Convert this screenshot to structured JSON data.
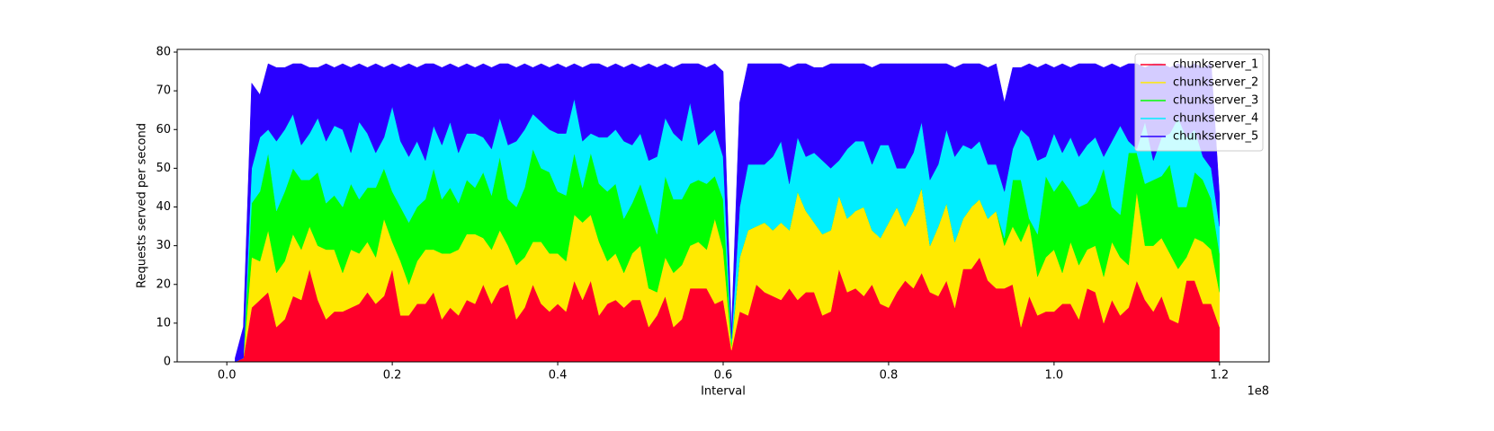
{
  "chart_data": {
    "type": "stacked_area",
    "xlabel": "Interval",
    "ylabel": "Requests served per second",
    "x_offset_label": "1e8",
    "x": [
      0.01,
      0.02,
      0.03,
      0.04,
      0.05,
      0.06,
      0.07,
      0.08,
      0.09,
      0.1,
      0.11,
      0.12,
      0.13,
      0.14,
      0.15,
      0.16,
      0.17,
      0.18,
      0.19,
      0.2,
      0.21,
      0.22,
      0.23,
      0.24,
      0.25,
      0.26,
      0.27,
      0.28,
      0.29,
      0.3,
      0.31,
      0.32,
      0.33,
      0.34,
      0.35,
      0.36,
      0.37,
      0.38,
      0.39,
      0.4,
      0.41,
      0.42,
      0.43,
      0.44,
      0.45,
      0.46,
      0.47,
      0.48,
      0.49,
      0.5,
      0.51,
      0.52,
      0.53,
      0.54,
      0.55,
      0.56,
      0.57,
      0.58,
      0.59,
      0.6,
      0.61,
      0.62,
      0.63,
      0.64,
      0.65,
      0.66,
      0.67,
      0.68,
      0.69,
      0.7,
      0.71,
      0.72,
      0.73,
      0.74,
      0.75,
      0.76,
      0.77,
      0.78,
      0.79,
      0.8,
      0.81,
      0.82,
      0.83,
      0.84,
      0.85,
      0.86,
      0.87,
      0.88,
      0.89,
      0.9,
      0.91,
      0.92,
      0.93,
      0.94,
      0.95,
      0.96,
      0.97,
      0.98,
      0.99,
      1.0,
      1.01,
      1.02,
      1.03,
      1.04,
      1.05,
      1.06,
      1.07,
      1.08,
      1.09,
      1.1,
      1.11,
      1.12,
      1.13,
      1.14,
      1.15,
      1.16,
      1.17,
      1.18,
      1.19,
      1.2
    ],
    "series": [
      {
        "name": "chunkserver_1",
        "color": "#ff0029",
        "values": [
          0,
          1,
          14,
          16,
          18,
          9,
          11,
          17,
          16,
          24,
          16,
          11,
          13,
          13,
          14,
          15,
          18,
          15,
          17,
          24,
          12,
          12,
          15,
          15,
          18,
          11,
          14,
          12,
          16,
          15,
          20,
          15,
          19,
          20,
          11,
          14,
          20,
          15,
          13,
          15,
          13,
          21,
          16,
          21,
          12,
          15,
          16,
          14,
          16,
          16,
          9,
          12,
          17,
          9,
          11,
          19,
          19,
          19,
          15,
          16,
          3,
          13,
          12,
          20,
          18,
          17,
          16,
          19,
          16,
          18,
          18,
          12,
          13,
          24,
          18,
          19,
          17,
          20,
          15,
          14,
          18,
          21,
          19,
          23,
          18,
          17,
          21,
          14,
          24,
          24,
          27,
          21,
          19,
          19,
          20,
          9,
          17,
          12,
          13,
          13,
          15,
          15,
          11,
          19,
          18,
          10,
          16,
          12,
          14,
          21,
          16,
          13,
          17,
          11,
          10,
          21,
          21,
          15,
          15,
          9
        ]
      },
      {
        "name": "chunkserver_2",
        "color": "#ffea00",
        "values": [
          0,
          0,
          13,
          10,
          16,
          14,
          15,
          16,
          13,
          11,
          14,
          18,
          16,
          10,
          15,
          13,
          13,
          12,
          20,
          7,
          14,
          8,
          11,
          14,
          11,
          17,
          14,
          17,
          17,
          18,
          12,
          14,
          15,
          10,
          14,
          13,
          11,
          16,
          15,
          13,
          13,
          17,
          20,
          17,
          19,
          11,
          12,
          9,
          12,
          14,
          10,
          6,
          10,
          14,
          14,
          11,
          12,
          10,
          22,
          13,
          1,
          14,
          22,
          15,
          18,
          17,
          20,
          15,
          28,
          21,
          18,
          21,
          21,
          19,
          19,
          20,
          23,
          14,
          17,
          22,
          22,
          14,
          20,
          22,
          12,
          18,
          20,
          17,
          13,
          16,
          15,
          16,
          20,
          11,
          15,
          22,
          19,
          10,
          14,
          16,
          8,
          16,
          14,
          10,
          12,
          12,
          15,
          15,
          11,
          23,
          14,
          17,
          15,
          17,
          14,
          6,
          11,
          16,
          14,
          9
        ]
      },
      {
        "name": "chunkserver_3",
        "color": "#00ff00",
        "values": [
          0,
          0,
          14,
          18,
          20,
          16,
          18,
          17,
          18,
          12,
          19,
          12,
          14,
          17,
          17,
          14,
          14,
          18,
          13,
          13,
          14,
          16,
          14,
          13,
          21,
          14,
          17,
          12,
          14,
          12,
          17,
          14,
          19,
          12,
          15,
          18,
          24,
          19,
          21,
          16,
          17,
          16,
          9,
          16,
          15,
          18,
          18,
          14,
          13,
          16,
          20,
          15,
          21,
          19,
          17,
          16,
          16,
          17,
          11,
          13,
          1,
          0,
          0,
          0,
          0,
          0,
          0,
          0,
          0,
          0,
          0,
          0,
          0,
          0,
          0,
          0,
          0,
          0,
          0,
          0,
          0,
          0,
          0,
          0,
          0,
          0,
          0,
          0,
          0,
          0,
          0,
          0,
          0,
          2,
          12,
          16,
          1,
          11,
          21,
          15,
          24,
          13,
          15,
          12,
          14,
          28,
          9,
          11,
          29,
          10,
          16,
          17,
          16,
          23,
          16,
          13,
          17,
          16,
          13,
          10
        ]
      },
      {
        "name": "chunkserver_4",
        "color": "#00eeff",
        "values": [
          0,
          0,
          9,
          14,
          6,
          18,
          16,
          14,
          9,
          12,
          14,
          16,
          18,
          20,
          8,
          20,
          14,
          9,
          8,
          22,
          17,
          17,
          17,
          10,
          11,
          14,
          17,
          13,
          12,
          14,
          9,
          12,
          10,
          14,
          17,
          15,
          9,
          12,
          11,
          15,
          16,
          14,
          12,
          5,
          12,
          14,
          14,
          20,
          15,
          13,
          13,
          20,
          15,
          17,
          15,
          21,
          9,
          12,
          12,
          11,
          1,
          13,
          17,
          16,
          15,
          19,
          21,
          12,
          14,
          14,
          18,
          19,
          16,
          9,
          18,
          18,
          17,
          17,
          24,
          20,
          10,
          15,
          15,
          17,
          17,
          16,
          19,
          22,
          19,
          15,
          15,
          14,
          12,
          12,
          8,
          13,
          21,
          19,
          5,
          15,
          7,
          14,
          13,
          15,
          14,
          3,
          17,
          23,
          3,
          1,
          16,
          5,
          10,
          8,
          23,
          18,
          11,
          6,
          8,
          7
        ]
      },
      {
        "name": "chunkserver_5",
        "color": "#2a00ff",
        "values": [
          1,
          8,
          22,
          11,
          17,
          19,
          16,
          13,
          21,
          17,
          13,
          20,
          15,
          17,
          22,
          15,
          17,
          23,
          18,
          11,
          19,
          24,
          19,
          25,
          16,
          20,
          15,
          22,
          18,
          17,
          19,
          21,
          14,
          21,
          19,
          17,
          12,
          15,
          16,
          18,
          17,
          9,
          19,
          18,
          19,
          18,
          17,
          19,
          21,
          17,
          25,
          23,
          14,
          17,
          20,
          10,
          21,
          18,
          17,
          22,
          2,
          27,
          26,
          26,
          26,
          24,
          20,
          30,
          19,
          24,
          22,
          24,
          27,
          25,
          22,
          20,
          20,
          25,
          21,
          21,
          27,
          27,
          23,
          15,
          30,
          26,
          17,
          23,
          21,
          22,
          20,
          25,
          26,
          23,
          21,
          16,
          19,
          24,
          24,
          17,
          23,
          18,
          24,
          21,
          19,
          23,
          20,
          15,
          20,
          22,
          14,
          25,
          19,
          17,
          14,
          18,
          17,
          23,
          27,
          8
        ]
      }
    ],
    "xlim": [
      -0.06,
      1.26
    ],
    "xticks": [
      {
        "value": 0,
        "label": "0.0"
      },
      0.2,
      0.4,
      0.6,
      0.8,
      {
        "value": 1,
        "label": "1.0"
      },
      1.2
    ],
    "ylim": [
      0,
      80.7
    ],
    "yticks": [
      0,
      10,
      20,
      30,
      40,
      50,
      60,
      70,
      80
    ],
    "grid": false,
    "legend": "upper right"
  }
}
